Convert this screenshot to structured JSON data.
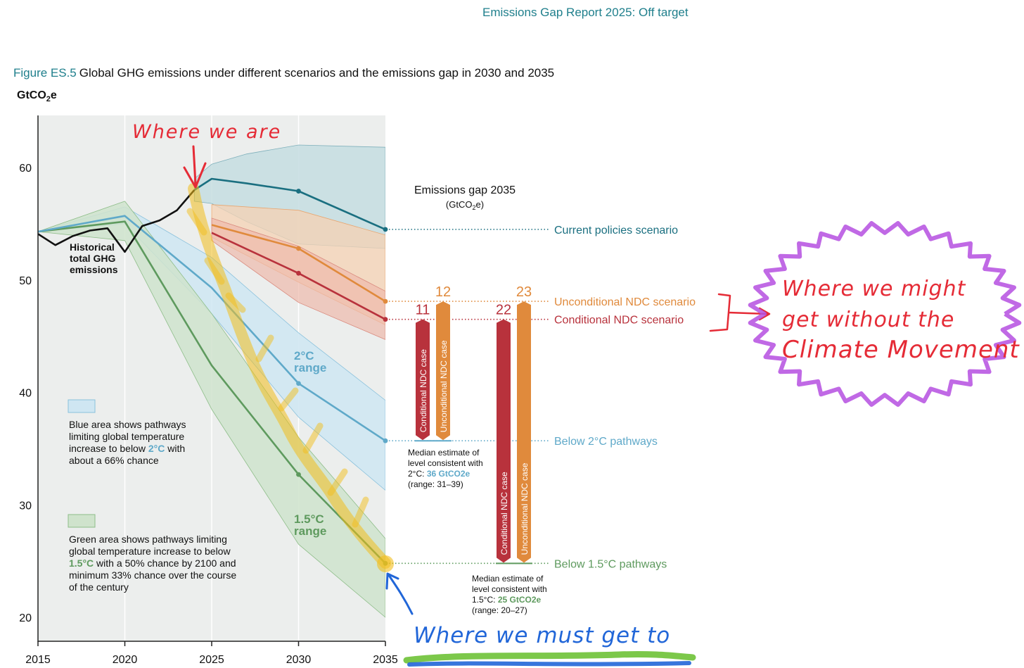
{
  "header": "Emissions Gap Report 2025: Off target",
  "figure": {
    "number": "Figure ES.5",
    "title": "Global GHG emissions under different scenarios and the emissions gap in 2030 and 2035"
  },
  "colors": {
    "current": "#1a6f80",
    "unconditional": "#e08a3c",
    "conditional": "#b8323c",
    "two_c": "#5fa9c9",
    "one_five_c": "#5e9a5e",
    "historical": "#111111",
    "annot_red": "#e52b36",
    "annot_purple": "#b54fe0",
    "annot_blue": "#2166d8",
    "annot_yellow": "#f2be1c"
  },
  "chart_data": {
    "type": "line",
    "ylabel": "GtCO2e",
    "ylim": [
      19,
      64.5
    ],
    "xlim": [
      2015,
      2035
    ],
    "x_ticks": [
      2015,
      2020,
      2025,
      2030,
      2035
    ],
    "y_ticks": [
      20,
      30,
      40,
      50,
      60
    ],
    "historical": {
      "name": "Historical total GHG emissions",
      "x": [
        2015,
        2016,
        2017,
        2018,
        2019,
        2020,
        2021,
        2022,
        2023,
        2024
      ],
      "y": [
        54.1,
        53.1,
        53.9,
        54.4,
        54.6,
        52.5,
        54.8,
        55.3,
        56.2,
        58.0
      ]
    },
    "scenarios": [
      {
        "id": "current",
        "label": "Current policies scenario",
        "x": [
          2024,
          2025,
          2027,
          2030,
          2035
        ],
        "y": [
          58.0,
          59.0,
          58.6,
          57.9,
          54.5
        ],
        "band_hi": [
          59.0,
          60.3,
          61.2,
          62.0,
          61.8
        ],
        "band_lo": [
          57.0,
          56.8,
          55.2,
          53.2,
          52.8
        ]
      },
      {
        "id": "unconditional",
        "label": "Unconditional NDC scenario",
        "x": [
          2025,
          2030,
          2035
        ],
        "y": [
          54.9,
          52.8,
          48.1
        ],
        "band_hi": [
          56.7,
          56.2,
          54.0
        ],
        "band_lo": [
          53.8,
          49.8,
          46.0
        ]
      },
      {
        "id": "conditional",
        "label": "Conditional NDC scenario",
        "x": [
          2025,
          2030,
          2035
        ],
        "y": [
          54.2,
          50.6,
          46.5
        ],
        "band_hi": [
          55.5,
          53.0,
          49.0
        ],
        "band_lo": [
          53.5,
          48.0,
          44.7
        ]
      },
      {
        "id": "two_c",
        "label": "Below 2°C pathways",
        "x": [
          2015,
          2020,
          2025,
          2030,
          2035
        ],
        "y": [
          54.3,
          55.7,
          49.3,
          40.8,
          35.7
        ],
        "band_hi": [
          54.3,
          56.5,
          52.0,
          45.3,
          39.3
        ],
        "band_lo": [
          54.3,
          55.0,
          47.0,
          37.8,
          31.3
        ]
      },
      {
        "id": "one_five_c",
        "label": "Below 1.5°C pathways",
        "x": [
          2015,
          2020,
          2025,
          2030,
          2035
        ],
        "y": [
          54.3,
          55.2,
          42.4,
          32.7,
          24.8
        ],
        "band_hi": [
          54.3,
          57.0,
          47.0,
          36.0,
          27.0
        ],
        "band_lo": [
          54.3,
          53.5,
          38.5,
          26.5,
          20.0
        ]
      }
    ],
    "range_labels": [
      {
        "text": "2°C range",
        "line1": "2°C",
        "line2": "range"
      },
      {
        "text": "1.5°C range",
        "line1": "1.5°C",
        "line2": "range"
      }
    ],
    "gap": {
      "title": "Emissions gap 2035",
      "unit": "(GtCO2e)",
      "bars": [
        {
          "case": "Conditional NDC case",
          "value": 11,
          "target": "2°C"
        },
        {
          "case": "Unconditional NDC case",
          "value": 12,
          "target": "2°C"
        },
        {
          "case": "Conditional NDC case",
          "value": 22,
          "target": "1.5°C"
        },
        {
          "case": "Unconditional NDC case",
          "value": 23,
          "target": "1.5°C"
        }
      ]
    },
    "notes": {
      "historical": [
        "Historical",
        "total GHG",
        "emissions"
      ],
      "blue_legend": [
        "Blue area shows pathways",
        "limiting global temperature",
        "increase to below ",
        "2°C",
        " with",
        "about a 66% chance"
      ],
      "green_legend": [
        "Green area shows pathways limiting",
        "global temperature increase to below",
        "1.5°C",
        " with a 50% chance by 2100 and",
        "minimum 33% chance over the course",
        "of the century"
      ],
      "median_2c": [
        "Median estimate of",
        "level consistent with",
        "2°C: ",
        "36 GtCO2e",
        "(range: 31–39)"
      ],
      "median_15c": [
        "Median estimate of",
        "level consistent with",
        "1.5°C: ",
        "25 GtCO2e",
        "(range: 20–27)"
      ]
    }
  },
  "annotations": {
    "where_we_are": "Where we are",
    "where_we_might": [
      "Where we might",
      "get without the",
      "Climate Movement"
    ],
    "where_we_must": "Where we must get to"
  }
}
